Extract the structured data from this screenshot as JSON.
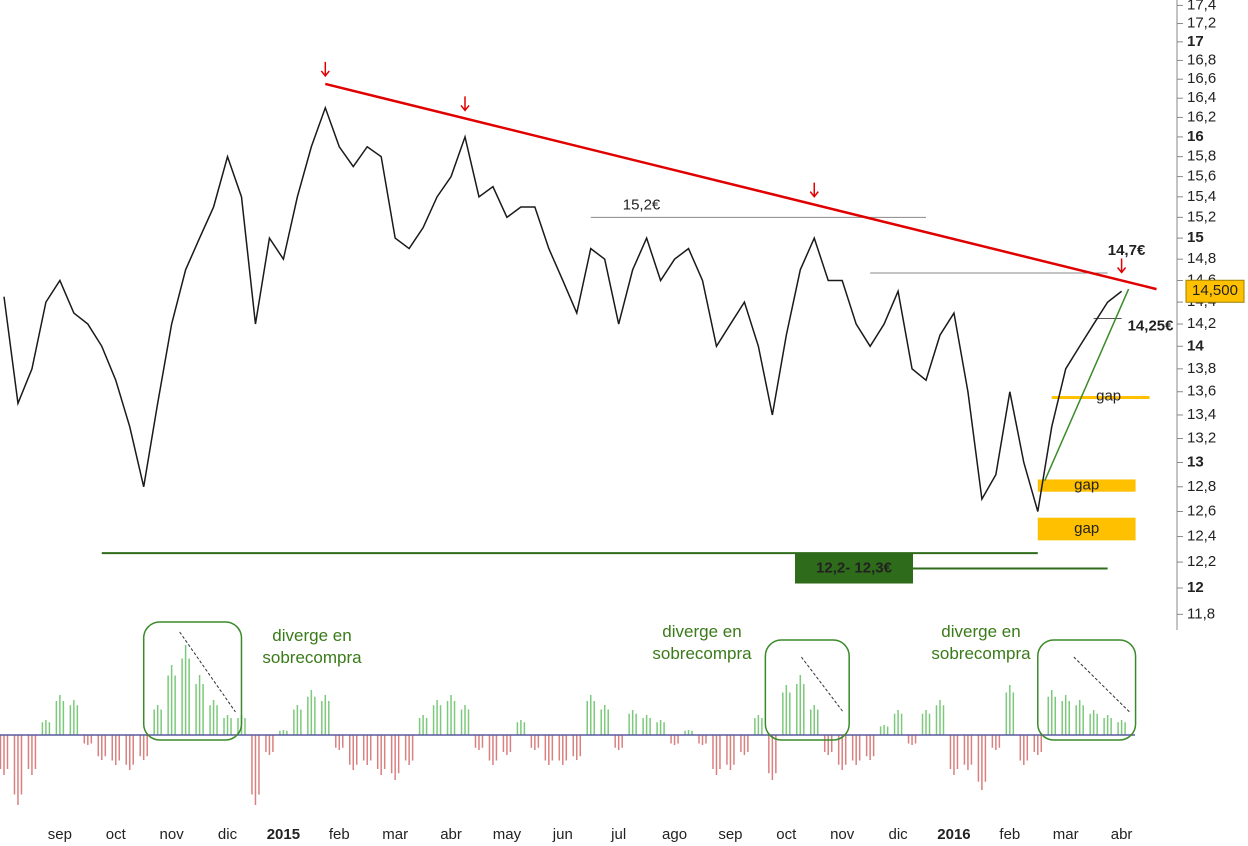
{
  "chart_data": [
    {
      "type": "line",
      "log_scale": true,
      "color": "#1a1a1a",
      "categories": [
        null,
        null,
        null,
        null,
        "sep",
        null,
        null,
        null,
        "oct",
        null,
        null,
        null,
        "nov",
        null,
        null,
        null,
        "dic",
        null,
        null,
        null,
        "2015",
        null,
        null,
        null,
        "feb",
        null,
        null,
        null,
        "mar",
        null,
        null,
        null,
        "abr",
        null,
        null,
        null,
        "may",
        null,
        null,
        null,
        "jun",
        null,
        null,
        null,
        "jul",
        null,
        null,
        null,
        "ago",
        null,
        null,
        null,
        "sep",
        null,
        null,
        null,
        "oct",
        null,
        null,
        null,
        "nov",
        null,
        null,
        null,
        "dic",
        null,
        null,
        null,
        "2016",
        null,
        null,
        null,
        "feb",
        null,
        null,
        null,
        "mar",
        null,
        null,
        null,
        "abr"
      ],
      "values": [
        14.45,
        13.5,
        13.8,
        14.4,
        14.6,
        14.3,
        14.2,
        14.0,
        13.7,
        13.3,
        12.8,
        13.5,
        14.2,
        14.7,
        15.0,
        15.3,
        15.8,
        15.4,
        14.2,
        15.0,
        14.8,
        15.4,
        15.9,
        16.3,
        15.9,
        15.7,
        15.9,
        15.8,
        15.0,
        14.9,
        15.1,
        15.4,
        15.6,
        16.0,
        15.4,
        15.5,
        15.2,
        15.3,
        15.3,
        14.9,
        14.6,
        14.3,
        14.9,
        14.8,
        14.2,
        14.7,
        15.0,
        14.6,
        14.8,
        14.9,
        14.6,
        14.0,
        14.2,
        14.4,
        14.0,
        13.4,
        14.1,
        14.7,
        15.0,
        14.6,
        14.6,
        14.2,
        14.0,
        14.2,
        14.5,
        13.8,
        13.7,
        14.1,
        14.3,
        13.6,
        12.7,
        12.9,
        13.6,
        13.0,
        12.6,
        13.3,
        13.8,
        14.0,
        14.2,
        14.4,
        14.5
      ],
      "ylim": [
        11.72,
        17.46
      ],
      "yticks": [
        {
          "value": 11.8,
          "label": "11,8"
        },
        12,
        {
          "value": 12.2,
          "label": "12,2"
        },
        {
          "value": 12.4,
          "label": "12,4"
        },
        {
          "value": 12.6,
          "label": "12,6"
        },
        {
          "value": 12.8,
          "label": "12,8"
        },
        13,
        {
          "value": 13.2,
          "label": "13,2"
        },
        {
          "value": 13.4,
          "label": "13,4"
        },
        {
          "value": 13.6,
          "label": "13,6"
        },
        {
          "value": 13.8,
          "label": "13,8"
        },
        14,
        {
          "value": 14.2,
          "label": "14,2"
        },
        {
          "value": 14.4,
          "label": "14,4"
        },
        {
          "value": 14.6,
          "label": "14,6"
        },
        {
          "value": 14.8,
          "label": "14,8"
        },
        15,
        {
          "value": 15.2,
          "label": "15,2"
        },
        {
          "value": 15.4,
          "label": "15,4"
        },
        {
          "value": 15.6,
          "label": "15,6"
        },
        {
          "value": 15.8,
          "label": "15,8"
        },
        16,
        {
          "value": 16.2,
          "label": "16,2"
        },
        {
          "value": 16.4,
          "label": "16,4"
        },
        {
          "value": 16.6,
          "label": "16,6"
        },
        {
          "value": 16.8,
          "label": "16,8"
        },
        17,
        {
          "value": 17.2,
          "label": "17,2"
        },
        {
          "value": 17.4,
          "label": "17,4"
        }
      ],
      "last_price": {
        "value": 14.5,
        "label": "14,500"
      },
      "levels": [
        {
          "value": 15.2,
          "from": 42,
          "to": 66,
          "color": "#888888",
          "label": "15,2€"
        },
        {
          "value": 14.67,
          "from": 62,
          "to": 79,
          "color": "#888888"
        },
        {
          "value": 12.27,
          "from": 7,
          "to": 74,
          "color": "#2e6b1a"
        },
        {
          "value": 12.15,
          "from": 65,
          "to": 79,
          "color": "#2e6b1a",
          "label": "12,2- 12,3€"
        },
        {
          "value": 14.25,
          "from": 78,
          "to": 80,
          "color": "#555555",
          "label": "14,25€"
        }
      ],
      "trendlines": [
        {
          "from": [
            23,
            16.55
          ],
          "to": [
            82.5,
            14.52
          ],
          "color": "#e00000",
          "label": "14,7€"
        },
        {
          "from": [
            74.5,
            12.85
          ],
          "to": [
            80.5,
            14.52
          ],
          "color": "#3a8a2a"
        }
      ],
      "gaps": [
        {
          "low": 13.55,
          "high": 13.55,
          "from": 75,
          "to": 82,
          "label": "gap"
        },
        {
          "low": 12.76,
          "high": 12.86,
          "from": 74,
          "to": 81,
          "label": "gap"
        },
        {
          "low": 12.37,
          "high": 12.55,
          "from": 74,
          "to": 81,
          "label": "gap"
        }
      ],
      "peaks": [
        23,
        33,
        58,
        80
      ]
    },
    {
      "type": "bar",
      "values": [
        -40,
        -70,
        -40,
        15,
        40,
        35,
        -10,
        -25,
        -30,
        -35,
        -25,
        30,
        70,
        90,
        60,
        35,
        20,
        20,
        -70,
        -20,
        5,
        30,
        45,
        40,
        -15,
        -35,
        -30,
        -40,
        -45,
        -30,
        20,
        35,
        40,
        30,
        -15,
        -30,
        -20,
        15,
        -15,
        -30,
        -30,
        -25,
        40,
        30,
        -15,
        25,
        20,
        15,
        -10,
        5,
        -10,
        -40,
        -35,
        -20,
        20,
        -45,
        50,
        60,
        30,
        -20,
        -35,
        -30,
        -25,
        10,
        25,
        -10,
        25,
        35,
        -40,
        -35,
        -55,
        -15,
        50,
        -30,
        -20,
        45,
        40,
        35,
        25,
        20,
        15
      ],
      "ylim": [
        -80,
        100
      ],
      "colors": {
        "up": "#7cc97c",
        "down": "#d98080",
        "zero": "#5a5aa0"
      },
      "divergences": [
        {
          "from": 10,
          "to": 17,
          "label": "diverge en\nsobrecompra"
        },
        {
          "from": 54.5,
          "to": 60.5,
          "label": "diverge en\nsobrecompra"
        },
        {
          "from": 74,
          "to": 81,
          "label": "diverge en\nsobrecompra"
        }
      ]
    }
  ]
}
